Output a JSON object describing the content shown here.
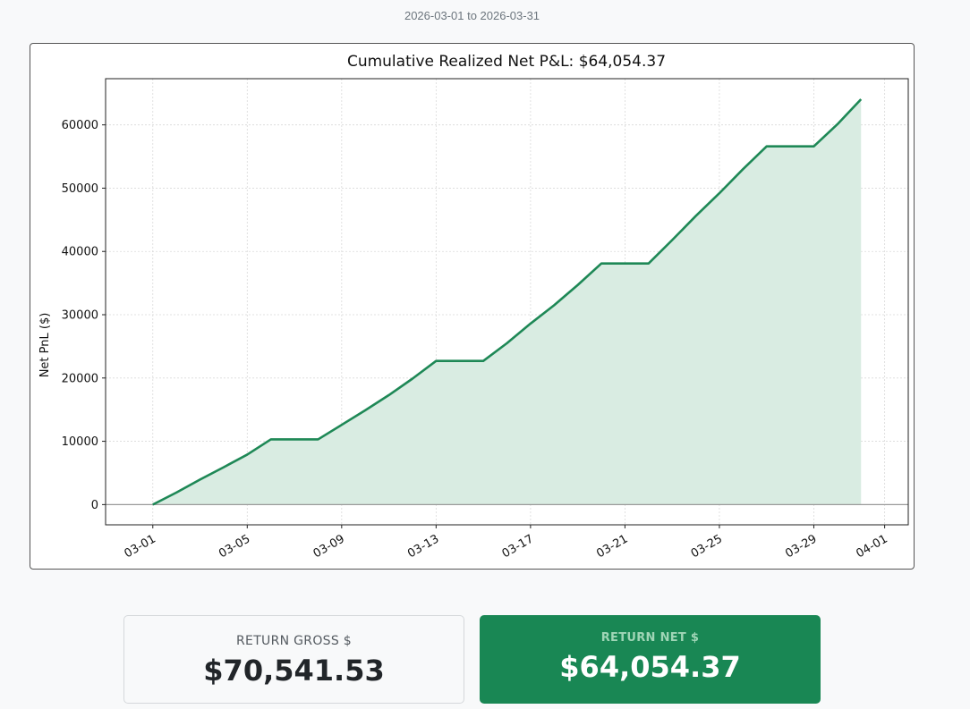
{
  "header": {
    "date_range": "2026-03-01 to 2026-03-31"
  },
  "metrics": {
    "gross": {
      "label": "RETURN GROSS $",
      "value": "$70,541.53"
    },
    "net": {
      "label": "RETURN NET $",
      "value": "$64,054.37"
    }
  },
  "colors": {
    "line": "#1e8856",
    "fill": "#d9ece2",
    "net_card": "#198754"
  },
  "chart_data": {
    "type": "area",
    "title": "Cumulative Realized Net P&L: $64,054.37",
    "xlabel": "",
    "ylabel": "Net PnL ($)",
    "x": [
      "2026-03-01",
      "2026-03-02",
      "2026-03-03",
      "2026-03-04",
      "2026-03-05",
      "2026-03-06",
      "2026-03-07",
      "2026-03-08",
      "2026-03-09",
      "2026-03-10",
      "2026-03-11",
      "2026-03-12",
      "2026-03-13",
      "2026-03-14",
      "2026-03-15",
      "2026-03-16",
      "2026-03-17",
      "2026-03-18",
      "2026-03-19",
      "2026-03-20",
      "2026-03-21",
      "2026-03-22",
      "2026-03-23",
      "2026-03-24",
      "2026-03-25",
      "2026-03-26",
      "2026-03-27",
      "2026-03-28",
      "2026-03-29",
      "2026-03-30",
      "2026-03-31"
    ],
    "values": [
      0,
      1900,
      3950,
      5900,
      7900,
      10300,
      10300,
      10300,
      12600,
      14900,
      17300,
      19900,
      22700,
      22700,
      22700,
      25500,
      28600,
      31500,
      34700,
      38100,
      38100,
      38100,
      41800,
      45600,
      49200,
      53000,
      56600,
      56600,
      56600,
      60100,
      64054.37
    ],
    "xticks": [
      "03-01",
      "03-05",
      "03-09",
      "03-13",
      "03-17",
      "03-21",
      "03-25",
      "03-29",
      "04-01"
    ],
    "yticks": [
      0,
      10000,
      20000,
      30000,
      40000,
      50000,
      60000
    ],
    "xlim": [
      "2026-02-27",
      "2026-04-02"
    ],
    "ylim": [
      -3200,
      67300
    ],
    "grid": true,
    "zero_line": true
  }
}
